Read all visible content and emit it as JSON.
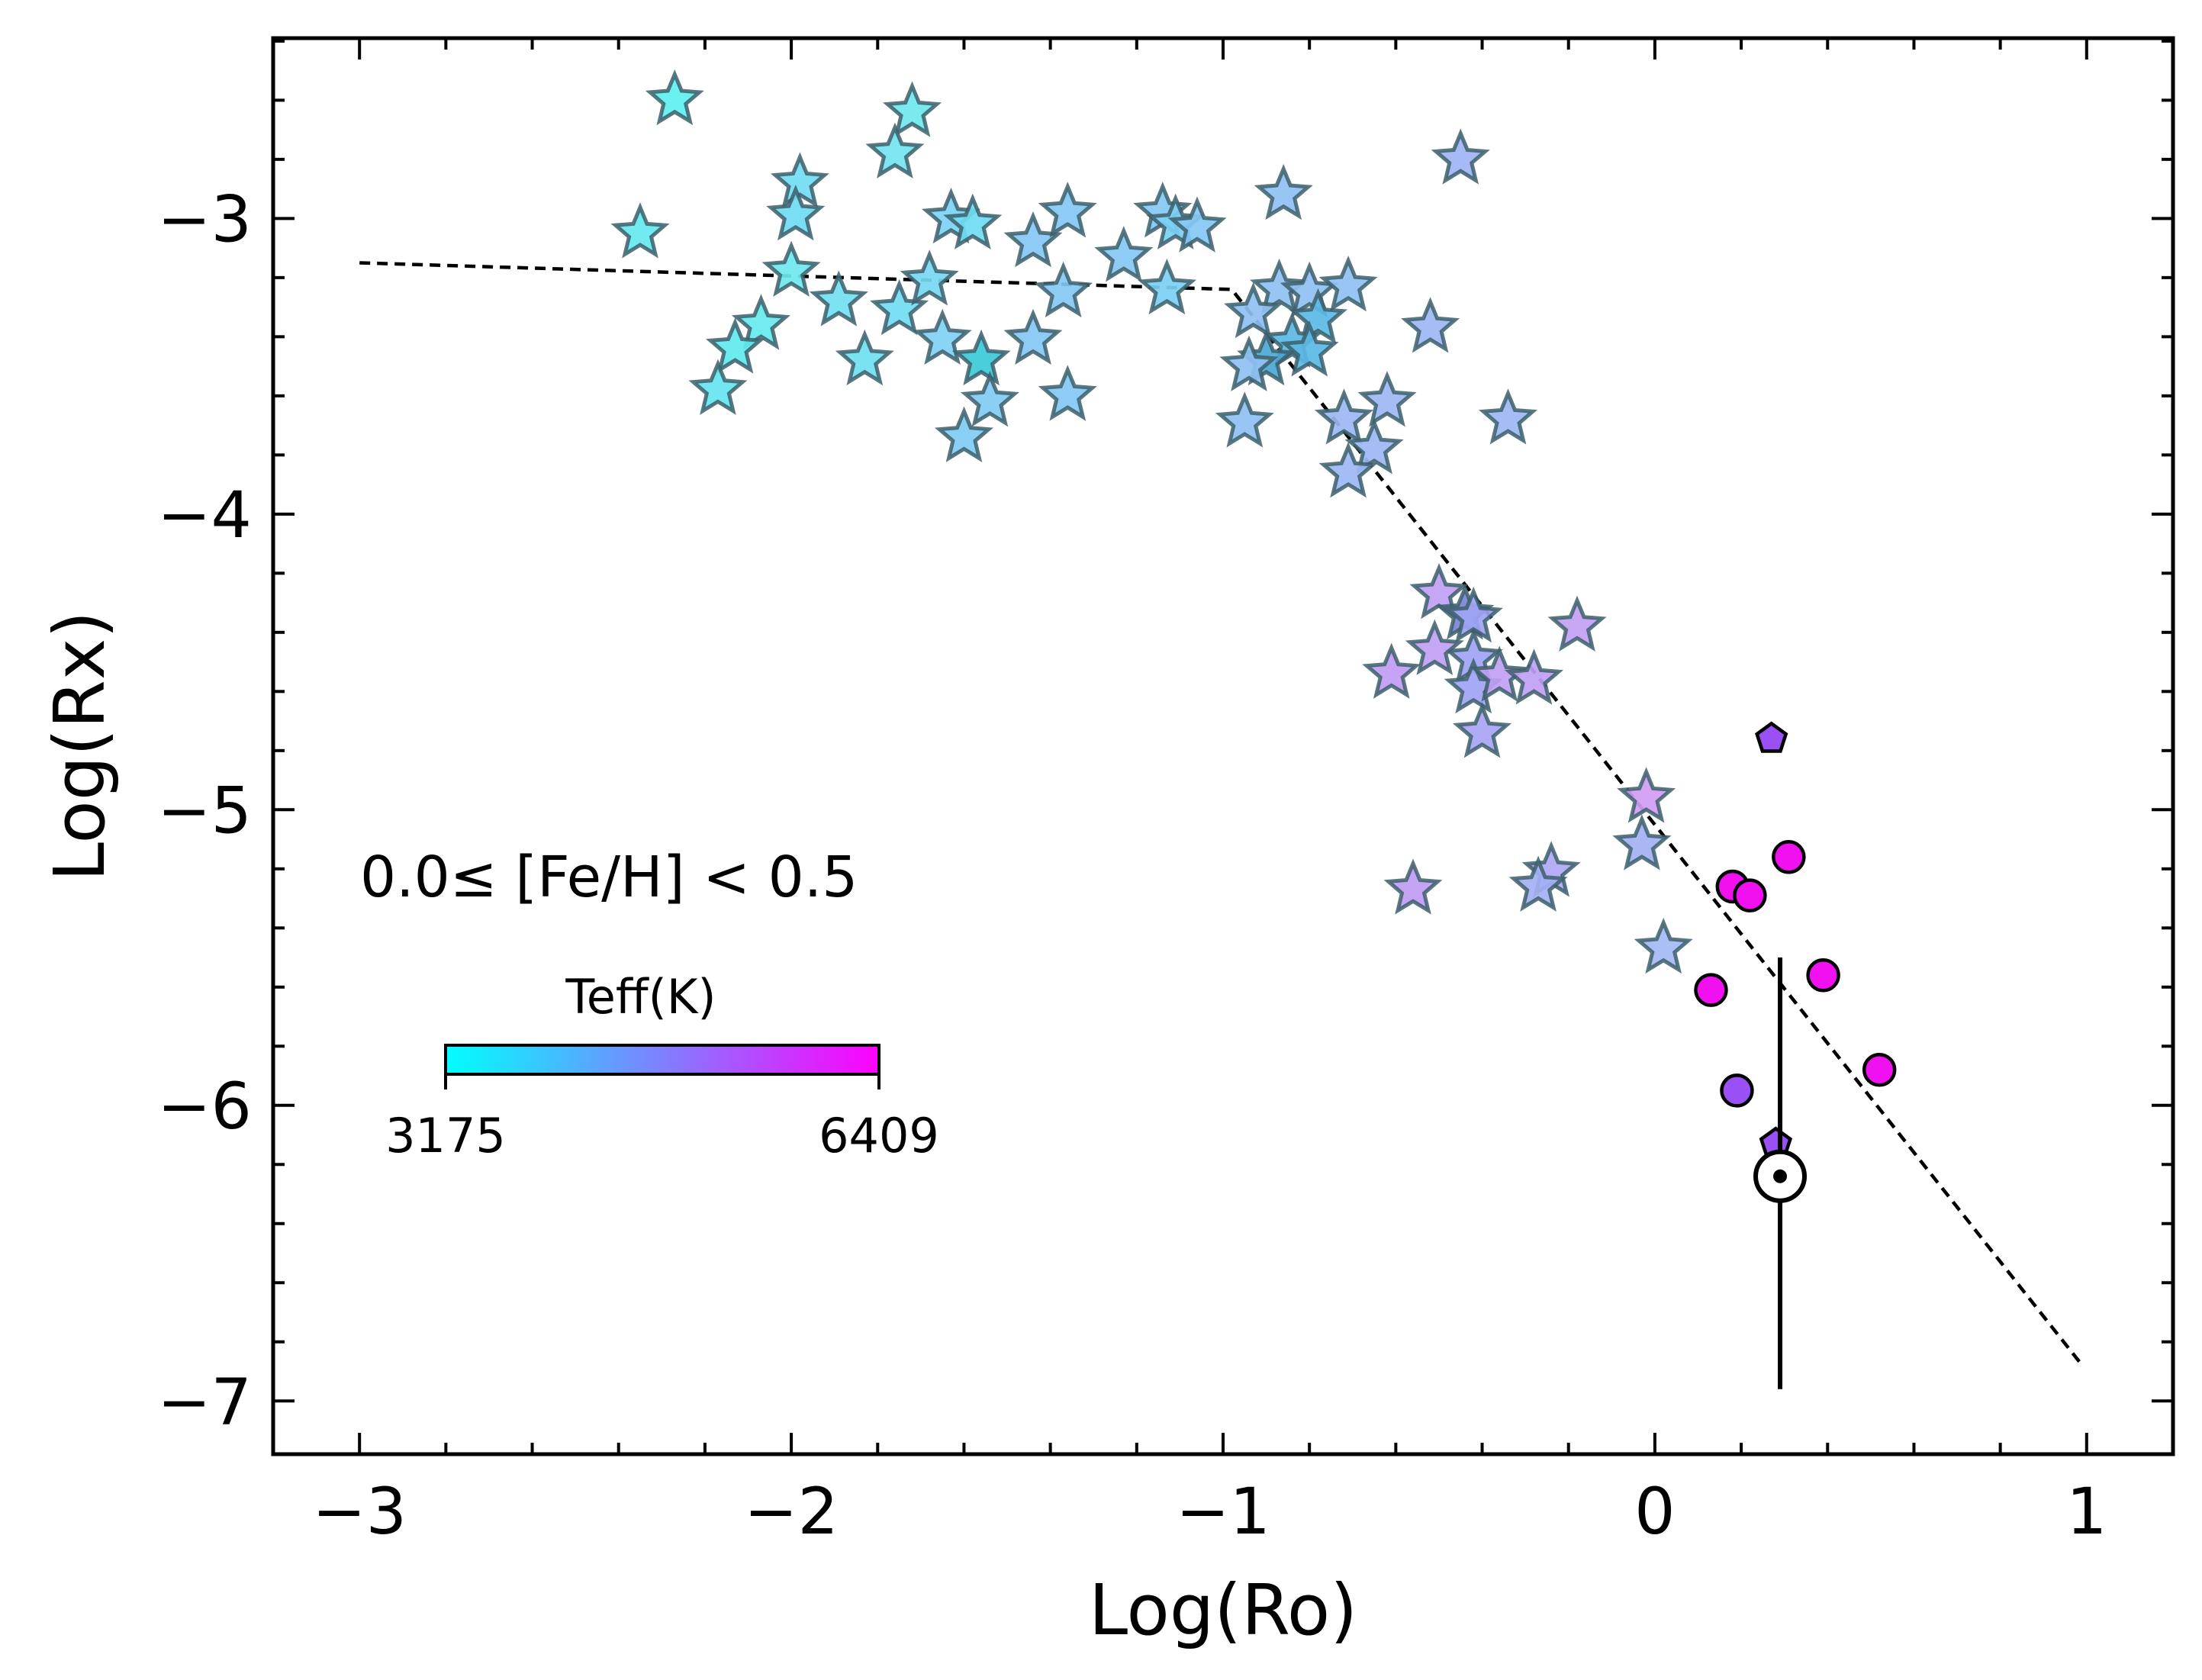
{
  "chart_data": {
    "type": "scatter",
    "xlabel": "Log(Ro)",
    "ylabel": "Log(Rx)",
    "xlim": [
      -3.2,
      1.2
    ],
    "ylim": [
      -7.18,
      -2.39
    ],
    "xticks": [
      -3,
      -2,
      -1,
      0,
      1
    ],
    "yticks": [
      -3,
      -4,
      -5,
      -6,
      -7
    ],
    "xtick_labels": [
      "−3",
      "−2",
      "−1",
      "0",
      "1"
    ],
    "ytick_labels": [
      "−3",
      "−4",
      "−5",
      "−6",
      "−7"
    ],
    "x_minor_step": 0.2,
    "y_minor_step": 0.2,
    "annotation": "0.0≤ [Fe/H] < 0.5",
    "colorbar": {
      "title": "Teff(K)",
      "min_label": "3175",
      "max_label": "6409",
      "cmap": [
        "#00ffff",
        "#ff00ff"
      ]
    },
    "grid": false,
    "fit_line": {
      "style": "dashed",
      "color": "#000000",
      "points": [
        [
          -3.0,
          -3.15
        ],
        [
          -0.98,
          -3.24
        ],
        [
          0.99,
          -6.88
        ]
      ]
    },
    "sun": {
      "x": 0.29,
      "y": -6.24,
      "error_low": -6.96,
      "error_high": -5.5
    },
    "series": [
      {
        "marker": "star",
        "points": [
          {
            "x": -2.27,
            "y": -2.6,
            "color": "#5ef0ee"
          },
          {
            "x": -2.35,
            "y": -3.05,
            "color": "#66e8f0"
          },
          {
            "x": -1.98,
            "y": -2.88,
            "color": "#72dcf2"
          },
          {
            "x": -1.99,
            "y": -2.99,
            "color": "#70dcf2"
          },
          {
            "x": -2.0,
            "y": -3.18,
            "color": "#6ee8ee"
          },
          {
            "x": -1.72,
            "y": -2.64,
            "color": "#70e8ee"
          },
          {
            "x": -1.76,
            "y": -2.78,
            "color": "#72e4f0"
          },
          {
            "x": -2.07,
            "y": -3.36,
            "color": "#66eaee"
          },
          {
            "x": -2.13,
            "y": -3.44,
            "color": "#60eaee"
          },
          {
            "x": -2.17,
            "y": -3.58,
            "color": "#66e4f0"
          },
          {
            "x": -1.89,
            "y": -3.28,
            "color": "#72e0f0"
          },
          {
            "x": -1.83,
            "y": -3.48,
            "color": "#70e0f0"
          },
          {
            "x": -1.75,
            "y": -3.31,
            "color": "#72dcf2"
          },
          {
            "x": -1.68,
            "y": -3.21,
            "color": "#76d8f2"
          },
          {
            "x": -1.63,
            "y": -3.0,
            "color": "#7cd4f4"
          },
          {
            "x": -1.58,
            "y": -3.02,
            "color": "#70dcf2"
          },
          {
            "x": -1.65,
            "y": -3.41,
            "color": "#80d0f4"
          },
          {
            "x": -1.56,
            "y": -3.48,
            "color": "#3ccad8"
          },
          {
            "x": -1.54,
            "y": -3.62,
            "color": "#80ccf4"
          },
          {
            "x": -1.6,
            "y": -3.74,
            "color": "#80ccf4"
          },
          {
            "x": -1.44,
            "y": -3.08,
            "color": "#86c8f4"
          },
          {
            "x": -1.36,
            "y": -2.98,
            "color": "#86c8f4"
          },
          {
            "x": -1.37,
            "y": -3.25,
            "color": "#86c8f4"
          },
          {
            "x": -1.44,
            "y": -3.41,
            "color": "#86c8f4"
          },
          {
            "x": -1.36,
            "y": -3.6,
            "color": "#86c8f4"
          },
          {
            "x": -1.23,
            "y": -3.13,
            "color": "#86c8f4"
          },
          {
            "x": -1.14,
            "y": -2.98,
            "color": "#86c8f4"
          },
          {
            "x": -1.11,
            "y": -3.02,
            "color": "#7cd0f4"
          },
          {
            "x": -1.06,
            "y": -3.03,
            "color": "#86c8f4"
          },
          {
            "x": -1.13,
            "y": -3.24,
            "color": "#7cd0f4"
          },
          {
            "x": -0.86,
            "y": -2.92,
            "color": "#90c0f4"
          },
          {
            "x": -0.87,
            "y": -3.24,
            "color": "#90c0f4"
          },
          {
            "x": -0.93,
            "y": -3.32,
            "color": "#90c0f4"
          },
          {
            "x": -0.8,
            "y": -3.25,
            "color": "#90c0f4"
          },
          {
            "x": -0.71,
            "y": -3.23,
            "color": "#90c0f4"
          },
          {
            "x": -0.78,
            "y": -3.34,
            "color": "#5ab8e4"
          },
          {
            "x": -0.84,
            "y": -3.42,
            "color": "#5ab8e4"
          },
          {
            "x": -0.9,
            "y": -3.48,
            "color": "#4aa8d6"
          },
          {
            "x": -0.8,
            "y": -3.45,
            "color": "#5ab8e4"
          },
          {
            "x": -0.94,
            "y": -3.5,
            "color": "#90c0f4"
          },
          {
            "x": -0.95,
            "y": -3.69,
            "color": "#90c0f4"
          },
          {
            "x": -0.72,
            "y": -3.68,
            "color": "#9cb8f4"
          },
          {
            "x": -0.62,
            "y": -3.62,
            "color": "#9cb8f4"
          },
          {
            "x": -0.65,
            "y": -3.78,
            "color": "#9cb8f4"
          },
          {
            "x": -0.71,
            "y": -3.86,
            "color": "#9cb8f4"
          },
          {
            "x": -0.52,
            "y": -3.37,
            "color": "#9cb8f4"
          },
          {
            "x": -0.45,
            "y": -2.8,
            "color": "#a0b4f4"
          },
          {
            "x": -0.34,
            "y": -3.68,
            "color": "#9cb8f4"
          },
          {
            "x": -0.5,
            "y": -4.27,
            "color": "#c0a0f4"
          },
          {
            "x": -0.44,
            "y": -4.34,
            "color": "#7c84d6"
          },
          {
            "x": -0.42,
            "y": -4.35,
            "color": "#a0a4f4"
          },
          {
            "x": -0.42,
            "y": -4.49,
            "color": "#a0a4f4"
          },
          {
            "x": -0.51,
            "y": -4.46,
            "color": "#c0a0f4"
          },
          {
            "x": -0.61,
            "y": -4.54,
            "color": "#c09cf4"
          },
          {
            "x": -0.42,
            "y": -4.59,
            "color": "#a0a4f4"
          },
          {
            "x": -0.36,
            "y": -4.55,
            "color": "#c0a0f4"
          },
          {
            "x": -0.28,
            "y": -4.56,
            "color": "#c0a0f4"
          },
          {
            "x": -0.4,
            "y": -4.74,
            "color": "#a8a4f4"
          },
          {
            "x": -0.18,
            "y": -4.38,
            "color": "#c4a0f4"
          },
          {
            "x": -0.02,
            "y": -4.96,
            "color": "#d29cf4"
          },
          {
            "x": -0.03,
            "y": -5.12,
            "color": "#a4b0f4"
          },
          {
            "x": -0.24,
            "y": -5.21,
            "color": "#b0a8f4"
          },
          {
            "x": -0.27,
            "y": -5.26,
            "color": "#a4b0f4"
          },
          {
            "x": -0.56,
            "y": -5.27,
            "color": "#c09cf4"
          },
          {
            "x": 0.02,
            "y": -5.47,
            "color": "#a4b8f4"
          }
        ]
      },
      {
        "marker": "circle",
        "points": [
          {
            "x": 0.31,
            "y": -5.16,
            "color": "#f010f0"
          },
          {
            "x": 0.18,
            "y": -5.26,
            "color": "#f010f0"
          },
          {
            "x": 0.22,
            "y": -5.29,
            "color": "#f010f0"
          },
          {
            "x": 0.39,
            "y": -5.56,
            "color": "#f010f0"
          },
          {
            "x": 0.13,
            "y": -5.61,
            "color": "#f010f0"
          },
          {
            "x": 0.52,
            "y": -5.88,
            "color": "#f010f0"
          },
          {
            "x": 0.19,
            "y": -5.95,
            "color": "#9a50f4"
          }
        ]
      },
      {
        "marker": "pentagon",
        "points": [
          {
            "x": 0.27,
            "y": -4.76,
            "color": "#9a50f4"
          },
          {
            "x": 0.28,
            "y": -6.13,
            "color": "#9a50f4"
          }
        ]
      }
    ]
  }
}
